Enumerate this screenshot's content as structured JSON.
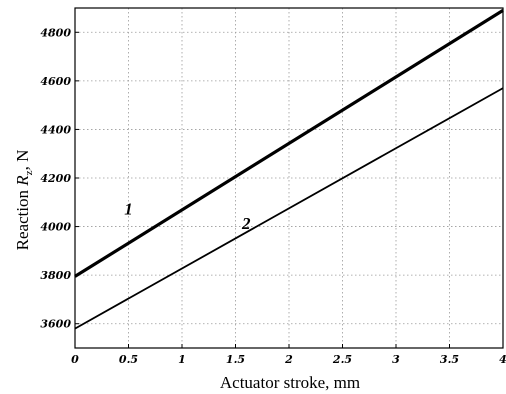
{
  "chart_data": {
    "type": "line",
    "xlabel": "Actuator stroke, mm",
    "ylabel_main": "Reaction ",
    "ylabel_symbol": "R",
    "ylabel_subscript": "z",
    "ylabel_unit": ", N",
    "xlim": [
      0,
      4
    ],
    "ylim": [
      3500,
      4900
    ],
    "x_ticks": [
      0,
      0.5,
      1,
      1.5,
      2,
      2.5,
      3,
      3.5,
      4
    ],
    "x_tick_labels": [
      "0",
      "0.5",
      "1",
      "1.5",
      "2",
      "2.5",
      "3",
      "3.5",
      "4"
    ],
    "y_ticks": [
      3600,
      3800,
      4000,
      4200,
      4400,
      4600,
      4800
    ],
    "y_tick_labels": [
      "3600",
      "3800",
      "4000",
      "4200",
      "4400",
      "4600",
      "4800"
    ],
    "grid": true,
    "series": [
      {
        "name": "1",
        "x": [
          0,
          4
        ],
        "values": [
          3795,
          4890
        ],
        "line_width": 3.2,
        "label_at": [
          0.5,
          4050
        ]
      },
      {
        "name": "2",
        "x": [
          0,
          4
        ],
        "values": [
          3580,
          4570
        ],
        "line_width": 1.8,
        "label_at": [
          1.6,
          3990
        ]
      }
    ]
  }
}
